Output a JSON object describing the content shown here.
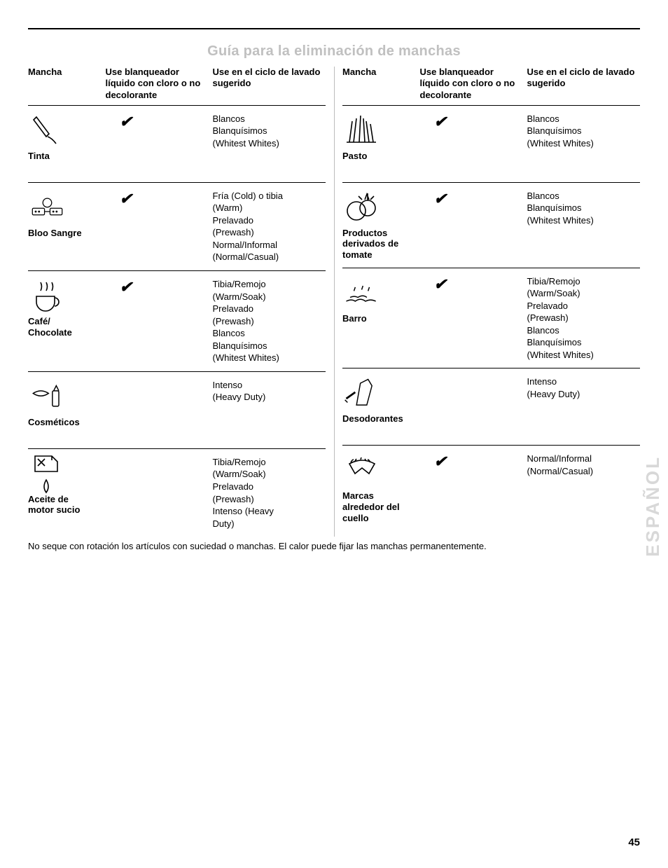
{
  "title": "Guía para la eliminación de manchas",
  "headers": {
    "stain": "Mancha",
    "bleach": "Use blanqueador líquido con cloro o no decolorante",
    "cycle": "Use en el ciclo de lavado sugerido"
  },
  "check_glyph": "✔",
  "left_rows": [
    {
      "label": "Tinta",
      "bleach": true,
      "cycle": "Blancos\nBlanquísimos\n(Whitest Whites)",
      "icon": "ink"
    },
    {
      "label": "Bloo Sangre",
      "bleach": true,
      "cycle": "Fría (Cold) o tibia\n(Warm)\nPrelavado\n(Prewash)\nNormal/Informal\n(Normal/Casual)",
      "icon": "blood"
    },
    {
      "label": "Café/\nChocolate",
      "bleach": true,
      "cycle": "Tibia/Remojo\n(Warm/Soak)\nPrelavado\n(Prewash)\nBlancos\nBlanquísimos\n(Whitest Whites)",
      "icon": "coffee"
    },
    {
      "label": "Cosméticos",
      "bleach": false,
      "cycle": "Intenso\n(Heavy Duty)",
      "icon": "cosmetics"
    },
    {
      "label": "Aceite de\nmotor sucio",
      "bleach": false,
      "cycle": "Tibia/Remojo\n(Warm/Soak)\nPrelavado\n(Prewash)\nIntenso (Heavy\nDuty)",
      "icon": "oil"
    }
  ],
  "right_rows": [
    {
      "label": "Pasto",
      "bleach": true,
      "cycle": "Blancos\nBlanquísimos\n(Whitest Whites)",
      "icon": "grass"
    },
    {
      "label": "Productos\nderivados de\ntomate",
      "bleach": true,
      "cycle": "Blancos\nBlanquísimos\n(Whitest Whites)",
      "icon": "tomato"
    },
    {
      "label": "Barro",
      "bleach": true,
      "cycle": "Tibia/Remojo\n(Warm/Soak)\nPrelavado\n(Prewash)\nBlancos\nBlanquísimos\n(Whitest Whites)",
      "icon": "mud"
    },
    {
      "label": "Desodorantes",
      "bleach": false,
      "cycle": "Intenso\n(Heavy Duty)",
      "icon": "deodorant"
    },
    {
      "label": "Marcas\nalrededor del\ncuello",
      "bleach": true,
      "cycle": "Normal/Informal\n(Normal/Casual)",
      "icon": "collar"
    }
  ],
  "footnote": "No seque con rotación los artículos con suciedad o manchas. El calor puede fijar las manchas permanentemente.",
  "page_number": "45",
  "side_label": "ESPAÑOL"
}
